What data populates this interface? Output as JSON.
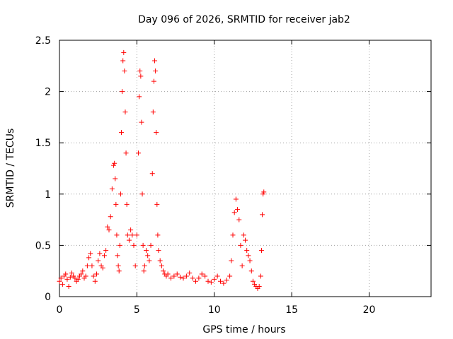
{
  "chart_data": {
    "type": "scatter",
    "title": "Day 096 of 2026, SRMTID for receiver jab2",
    "xlabel": "GPS time / hours",
    "ylabel": "SRMTID / TECUs",
    "xlim": [
      0,
      24
    ],
    "ylim": [
      0,
      2.5
    ],
    "xticks": [
      0,
      5,
      10,
      15,
      20
    ],
    "xtick_labels": [
      "0",
      "5",
      "10",
      "15",
      "20"
    ],
    "yticks": [
      0,
      0.5,
      1,
      1.5,
      2,
      2.5
    ],
    "ytick_labels": [
      "0",
      "0.5",
      "1",
      "1.5",
      "2",
      "2.5"
    ],
    "grid": true,
    "marker": "+",
    "series": [
      {
        "name": "jab2",
        "color": "#ff0000",
        "x": [
          0.0,
          0.1,
          0.2,
          0.3,
          0.4,
          0.5,
          0.6,
          0.7,
          0.8,
          0.9,
          1.0,
          1.1,
          1.2,
          1.3,
          1.4,
          1.5,
          1.6,
          1.7,
          1.8,
          1.9,
          2.0,
          2.1,
          2.2,
          2.3,
          2.4,
          2.5,
          2.6,
          2.7,
          2.8,
          2.9,
          3.0,
          3.1,
          3.2,
          3.3,
          3.4,
          3.5,
          3.55,
          3.6,
          3.65,
          3.7,
          3.75,
          3.8,
          3.85,
          3.9,
          3.95,
          4.0,
          4.05,
          4.1,
          4.15,
          4.2,
          4.25,
          4.3,
          4.35,
          4.4,
          4.5,
          4.6,
          4.7,
          4.8,
          4.9,
          5.0,
          5.1,
          5.15,
          5.2,
          5.25,
          5.3,
          5.35,
          5.4,
          5.45,
          5.5,
          5.6,
          5.7,
          5.8,
          5.9,
          6.0,
          6.05,
          6.1,
          6.15,
          6.2,
          6.25,
          6.3,
          6.35,
          6.4,
          6.5,
          6.6,
          6.7,
          6.8,
          6.9,
          7.0,
          7.2,
          7.4,
          7.6,
          7.8,
          8.0,
          8.2,
          8.4,
          8.6,
          8.8,
          9.0,
          9.2,
          9.4,
          9.6,
          9.8,
          10.0,
          10.2,
          10.4,
          10.6,
          10.8,
          11.0,
          11.1,
          11.2,
          11.3,
          11.4,
          11.5,
          11.6,
          11.7,
          11.8,
          11.9,
          12.0,
          12.1,
          12.2,
          12.3,
          12.4,
          12.5,
          12.6,
          12.7,
          12.8,
          12.9,
          13.0,
          13.05,
          13.1,
          13.15,
          13.2
        ],
        "y": [
          0.15,
          0.18,
          0.12,
          0.2,
          0.22,
          0.17,
          0.1,
          0.19,
          0.23,
          0.2,
          0.18,
          0.15,
          0.17,
          0.2,
          0.22,
          0.25,
          0.18,
          0.2,
          0.3,
          0.38,
          0.42,
          0.3,
          0.2,
          0.15,
          0.22,
          0.35,
          0.42,
          0.3,
          0.28,
          0.4,
          0.45,
          0.68,
          0.65,
          0.78,
          1.05,
          1.28,
          1.3,
          1.15,
          0.9,
          0.6,
          0.4,
          0.3,
          0.25,
          0.5,
          1.0,
          1.6,
          2.0,
          2.3,
          2.38,
          2.2,
          1.8,
          1.4,
          0.9,
          0.6,
          0.55,
          0.65,
          0.6,
          0.5,
          0.3,
          0.6,
          1.4,
          1.95,
          2.2,
          2.15,
          1.7,
          1.0,
          0.5,
          0.25,
          0.3,
          0.45,
          0.4,
          0.35,
          0.5,
          1.2,
          1.8,
          2.1,
          2.3,
          2.2,
          1.6,
          0.9,
          0.6,
          0.45,
          0.35,
          0.3,
          0.25,
          0.22,
          0.2,
          0.22,
          0.18,
          0.2,
          0.22,
          0.19,
          0.18,
          0.2,
          0.23,
          0.18,
          0.15,
          0.18,
          0.22,
          0.2,
          0.15,
          0.14,
          0.17,
          0.2,
          0.15,
          0.13,
          0.16,
          0.2,
          0.35,
          0.6,
          0.82,
          0.95,
          0.85,
          0.75,
          0.5,
          0.3,
          0.6,
          0.55,
          0.45,
          0.4,
          0.35,
          0.25,
          0.15,
          0.12,
          0.1,
          0.08,
          0.1,
          0.2,
          0.45,
          0.8,
          1.0,
          1.02
        ]
      }
    ]
  }
}
